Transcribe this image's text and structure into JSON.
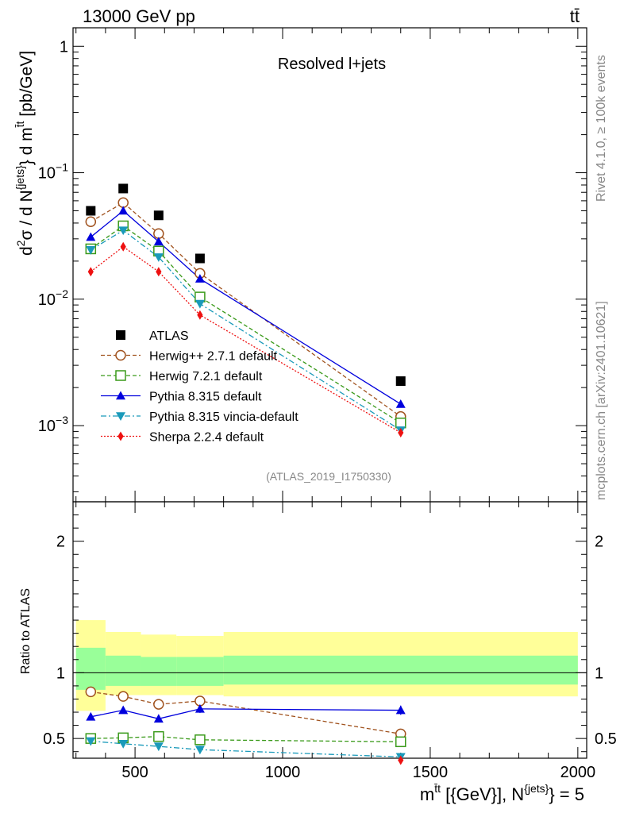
{
  "header": {
    "energy_label": "13000 GeV pp",
    "process_label": "tt̄"
  },
  "side": {
    "rivet_label": "Rivet 4.1.0, ≥ 100k events",
    "mcplots_label": "mcplots.cern.ch [arXiv:2401.10621]"
  },
  "chart_data": [
    {
      "type": "scatter",
      "name": "main",
      "title": "Resolved l+jets",
      "analysis_tag": "(ATLAS_2019_I1750330)",
      "ylabel_parts": {
        "d2sigma": "d²σ",
        "dN": "d N",
        "jets_sup": "{jets}",
        "dm": "} d m",
        "ttbar_sup": "t̄t",
        "units": "[pb/GeV]",
        "lead": "d",
        "sup2": "2",
        "sigma": "σ  /  d N",
        "close": "} d m",
        "unit_text": " [pb/GeV]"
      },
      "ylim": [
        0.00025,
        1.4
      ],
      "yscale": "log",
      "yticks": [
        {
          "value": 1,
          "label": "1",
          "base": "1",
          "exp": ""
        },
        {
          "value": 0.1,
          "label": "10^-1",
          "base": "10",
          "exp": "−1"
        },
        {
          "value": 0.01,
          "label": "10^-2",
          "base": "10",
          "exp": "−2"
        },
        {
          "value": 0.001,
          "label": "10^-3",
          "base": "10",
          "exp": "−3"
        }
      ],
      "bin_edges": [
        300,
        400,
        520,
        640,
        800,
        2000
      ],
      "x": [
        350,
        460,
        580,
        720,
        1400
      ],
      "series": [
        {
          "name": "ATLAS",
          "color": "#000000",
          "marker": "square-filled",
          "dash": "none",
          "values": [
            0.05,
            0.075,
            0.046,
            0.021,
            0.00225
          ]
        },
        {
          "name": "Herwig++ 2.7.1 default",
          "color": "#a0521e",
          "marker": "circle-open",
          "dash": "dashed",
          "values": [
            0.041,
            0.058,
            0.033,
            0.016,
            0.00118
          ]
        },
        {
          "name": "Herwig 7.2.1 default",
          "color": "#3a9a1a",
          "marker": "square-open",
          "dash": "dashed",
          "values": [
            0.025,
            0.038,
            0.024,
            0.0104,
            0.00105
          ]
        },
        {
          "name": "Pythia 8.315 default",
          "color": "#0000dd",
          "marker": "triangle-up",
          "dash": "solid",
          "values": [
            0.031,
            0.05,
            0.0285,
            0.0145,
            0.00148
          ]
        },
        {
          "name": "Pythia 8.315 vincia-default",
          "color": "#1a9aba",
          "marker": "triangle-down",
          "dash": "dashdot",
          "values": [
            0.0245,
            0.035,
            0.0215,
            0.0092,
            0.00092
          ]
        },
        {
          "name": "Sherpa 2.2.4 default",
          "color": "#ee1111",
          "marker": "diamond",
          "dash": "dotted",
          "values": [
            0.0165,
            0.026,
            0.0165,
            0.0075,
            0.00088
          ]
        }
      ]
    },
    {
      "type": "scatter",
      "name": "ratio",
      "ylabel": "Ratio to ATLAS",
      "ylim": [
        0.35,
        2.3
      ],
      "yticks": [
        0.5,
        1,
        2
      ],
      "ytick_labels": [
        "0.5",
        "1",
        "2"
      ],
      "xlim": [
        290,
        2000
      ],
      "xticks": [
        500,
        1000,
        1500,
        2000
      ],
      "xtick_labels": [
        "500",
        "1000",
        "1500",
        "2000"
      ],
      "xlabel_parts": {
        "m": "m",
        "sup": "t̄t",
        "mid": " [{GeV}], N",
        "sup2": "{jets}",
        "end": "} = 5"
      },
      "bands": [
        {
          "x0": 300,
          "x1": 400,
          "green": [
            0.87,
            1.19
          ],
          "yellow": [
            0.71,
            1.4
          ]
        },
        {
          "x0": 400,
          "x1": 520,
          "green": [
            0.9,
            1.13
          ],
          "yellow": [
            0.83,
            1.31
          ]
        },
        {
          "x0": 520,
          "x1": 640,
          "green": [
            0.9,
            1.12
          ],
          "yellow": [
            0.83,
            1.29
          ]
        },
        {
          "x0": 640,
          "x1": 800,
          "green": [
            0.9,
            1.12
          ],
          "yellow": [
            0.83,
            1.28
          ]
        },
        {
          "x0": 800,
          "x1": 2000,
          "green": [
            0.91,
            1.13
          ],
          "yellow": [
            0.82,
            1.31
          ]
        }
      ],
      "series": [
        {
          "name": "Herwig++ 2.7.1 default",
          "color": "#a0521e",
          "marker": "circle-open",
          "dash": "dashed",
          "x": [
            350,
            460,
            580,
            720,
            1400
          ],
          "values": [
            0.855,
            0.82,
            0.76,
            0.785,
            0.535
          ],
          "err": [
            0.02,
            0.015,
            0.02,
            0.03,
            0.035
          ]
        },
        {
          "name": "Herwig 7.2.1 default",
          "color": "#3a9a1a",
          "marker": "square-open",
          "dash": "dashed",
          "x": [
            350,
            460,
            580,
            720,
            1400
          ],
          "values": [
            0.5,
            0.505,
            0.515,
            0.49,
            0.475
          ],
          "err": [
            0.015,
            0.015,
            0.015,
            0.02,
            0.03
          ]
        },
        {
          "name": "Pythia 8.315 default",
          "color": "#0000dd",
          "marker": "triangle-up",
          "dash": "solid",
          "x": [
            350,
            460,
            580,
            720,
            1400
          ],
          "values": [
            0.665,
            0.715,
            0.65,
            0.725,
            0.715
          ],
          "err": [
            0.025,
            0.02,
            0.025,
            0.03,
            0.035
          ]
        },
        {
          "name": "Pythia 8.315 vincia-default",
          "color": "#1a9aba",
          "marker": "triangle-down",
          "dash": "dashdot",
          "x": [
            350,
            460,
            580,
            720,
            1400
          ],
          "values": [
            0.48,
            0.46,
            0.44,
            0.415,
            0.36
          ],
          "err": [
            0.025,
            0.02,
            0.02,
            0.03,
            0.03
          ]
        },
        {
          "name": "Sherpa 2.2.4 default",
          "color": "#ee1111",
          "marker": "diamond",
          "dash": "dotted",
          "x": [
            1400
          ],
          "values": [
            0.335
          ],
          "err": [
            0.02
          ]
        }
      ]
    }
  ]
}
